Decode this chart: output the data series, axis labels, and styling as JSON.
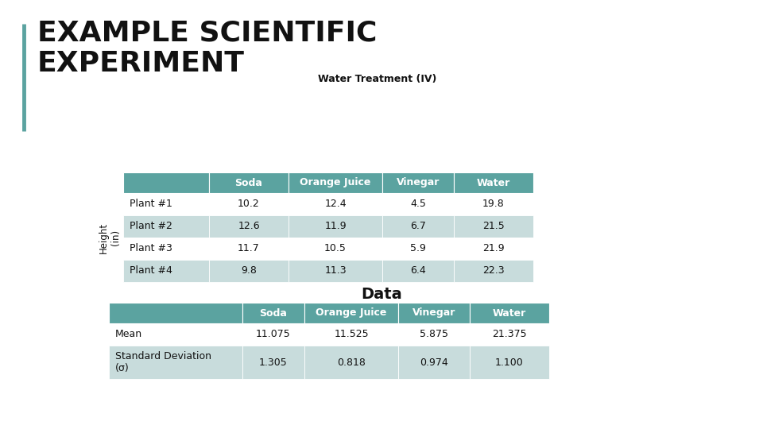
{
  "title_line1": "EXAMPLE SCIENTIFIC",
  "title_line2": "EXPERIMENT",
  "iv_label": "Water Treatment (IV)",
  "dv_label": "Height\n(in)",
  "data_label": "Data",
  "header_color": "#5BA3A0",
  "row_color_even": "#C8DCDC",
  "row_color_odd": "#FFFFFF",
  "header_text_color": "#FFFFFF",
  "cell_text_color": "#111111",
  "columns": [
    "",
    "Soda",
    "Orange Juice",
    "Vinegar",
    "Water"
  ],
  "data_rows": [
    [
      "Plant #1",
      "10.2",
      "12.4",
      "4.5",
      "19.8"
    ],
    [
      "Plant #2",
      "12.6",
      "11.9",
      "6.7",
      "21.5"
    ],
    [
      "Plant #3",
      "11.7",
      "10.5",
      "5.9",
      "21.9"
    ],
    [
      "Plant #4",
      "9.8",
      "11.3",
      "6.4",
      "22.3"
    ]
  ],
  "stats_columns": [
    "",
    "Soda",
    "Orange Juice",
    "Vinegar",
    "Water"
  ],
  "stats_rows": [
    [
      "Mean",
      "11.075",
      "11.525",
      "5.875",
      "21.375"
    ],
    [
      "Standard Deviation\n(σ)",
      "1.305",
      "0.818",
      "0.974",
      "1.100"
    ]
  ],
  "title_fontsize": 26,
  "table_fontsize": 9,
  "data_label_fontsize": 14,
  "iv_label_fontsize": 9,
  "left_bar_color": "#5BA3A0",
  "background_color": "#FFFFFF"
}
